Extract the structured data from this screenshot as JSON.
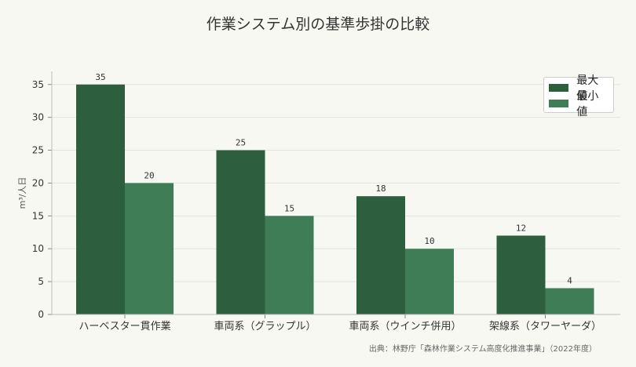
{
  "chart_data": {
    "type": "bar",
    "title": "作業システム別の基準歩掛の比較",
    "ylabel": "m³/人日",
    "xlabel": "",
    "categories": [
      "ハーベスター貫作業",
      "車両系（グラップル）",
      "車両系（ウインチ併用）",
      "架線系（タワーヤーダ）"
    ],
    "series": [
      {
        "name": "最大値",
        "values": [
          35,
          25,
          18,
          12
        ],
        "color": "#2d5e3e"
      },
      {
        "name": "最小値",
        "values": [
          20,
          15,
          10,
          4
        ],
        "color": "#3e7d55"
      }
    ],
    "ylim": [
      0,
      37
    ],
    "yticks": [
      0,
      5,
      10,
      15,
      20,
      25,
      30,
      35
    ],
    "grid": true,
    "legend": "top-right"
  },
  "source": "出典：林野庁「森林作業システム高度化推進事業」（2022年度）"
}
